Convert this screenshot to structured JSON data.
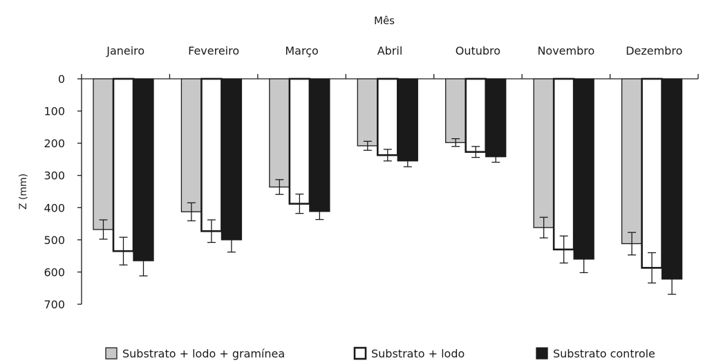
{
  "chart_data": {
    "type": "bar",
    "title": "Mês",
    "xlabel": "",
    "ylabel": "Z (mm)",
    "ylim": [
      0,
      700
    ],
    "y_inverted": true,
    "x_axis_position": "top",
    "yticks": [
      "0",
      "100",
      "200",
      "300",
      "400",
      "500",
      "600",
      "700"
    ],
    "categories": [
      "Janeiro",
      "Fevereiro",
      "Março",
      "Abril",
      "Outubro",
      "Novembro",
      "Dezembro"
    ],
    "series": [
      {
        "name": "Substrato + lodo + gramínea",
        "fill": "#c8c8c8",
        "stroke": "#1a1a1a",
        "values": [
          468,
          413,
          336,
          208,
          198,
          462,
          512
        ],
        "errors": [
          30,
          28,
          23,
          14,
          12,
          32,
          35
        ]
      },
      {
        "name": "Substrato + lodo",
        "fill": "#ffffff",
        "stroke": "#1a1a1a",
        "values": [
          535,
          473,
          388,
          237,
          227,
          530,
          587
        ],
        "errors": [
          43,
          35,
          30,
          18,
          17,
          42,
          47
        ]
      },
      {
        "name": "Substrato controle",
        "fill": "#1a1a1a",
        "stroke": "#1a1a1a",
        "values": [
          565,
          500,
          412,
          255,
          242,
          560,
          622
        ],
        "errors": [
          47,
          38,
          25,
          18,
          17,
          42,
          47
        ]
      }
    ],
    "legend_position": "bottom",
    "grid": false
  }
}
